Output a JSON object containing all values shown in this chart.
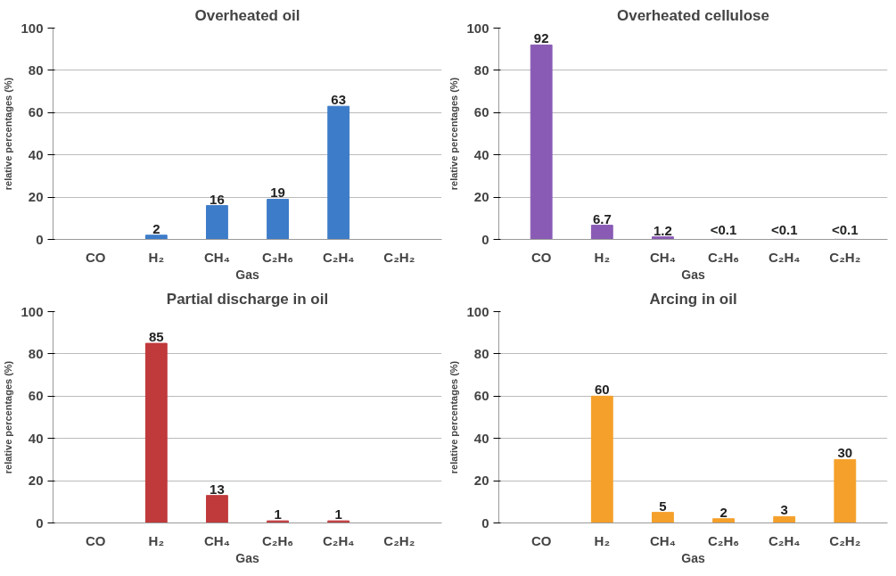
{
  "chart_data": [
    {
      "type": "bar",
      "title": "Overheated oil",
      "xlabel": "Gas",
      "ylabel": "relative percentages (%)",
      "categories": [
        "CO",
        "H₂",
        "CH₄",
        "C₂H₆",
        "C₂H₄",
        "C₂H₂"
      ],
      "values": [
        null,
        2,
        16,
        19,
        63,
        null
      ],
      "color": "#3d7cc9",
      "ylim": [
        0,
        100
      ],
      "yticks": [
        0,
        20,
        40,
        60,
        80,
        100
      ],
      "grid": "y",
      "data_labels": true
    },
    {
      "type": "bar",
      "title": "Overheated cellulose",
      "xlabel": "Gas",
      "ylabel": "relative percentages (%)",
      "categories": [
        "CO",
        "H₂",
        "CH₄",
        "C₂H₆",
        "C₂H₄",
        "C₂H₂"
      ],
      "values": [
        92,
        6.7,
        1.2,
        0.05,
        0.05,
        0.05
      ],
      "value_labels": [
        "92",
        "6.7",
        "1.2",
        "<0.1",
        "<0.1",
        "<0.1"
      ],
      "color": "#8a5bb5",
      "ylim": [
        0,
        100
      ],
      "yticks": [
        0,
        20,
        40,
        60,
        80,
        100
      ],
      "grid": "y"
    },
    {
      "type": "bar",
      "title": "Partial discharge in oil",
      "xlabel": "Gas",
      "ylabel": "relative percentages (%)",
      "categories": [
        "CO",
        "H₂",
        "CH₄",
        "C₂H₆",
        "C₂H₄",
        "C₂H₂"
      ],
      "values": [
        null,
        85,
        13,
        1,
        1,
        null
      ],
      "color": "#c0393b",
      "ylim": [
        0,
        100
      ],
      "yticks": [
        0,
        20,
        40,
        60,
        80,
        100
      ],
      "grid": "y",
      "data_labels": true
    },
    {
      "type": "bar",
      "title": "Arcing in oil",
      "xlabel": "Gas",
      "ylabel": "relative percentages (%)",
      "categories": [
        "CO",
        "H₂",
        "CH₄",
        "C₂H₆",
        "C₂H₄",
        "C₂H₂"
      ],
      "values": [
        null,
        60,
        5,
        2,
        3,
        30
      ],
      "color": "#f5a02a",
      "ylim": [
        0,
        100
      ],
      "yticks": [
        0,
        20,
        40,
        60,
        80,
        100
      ],
      "grid": "y",
      "data_labels": true
    }
  ]
}
